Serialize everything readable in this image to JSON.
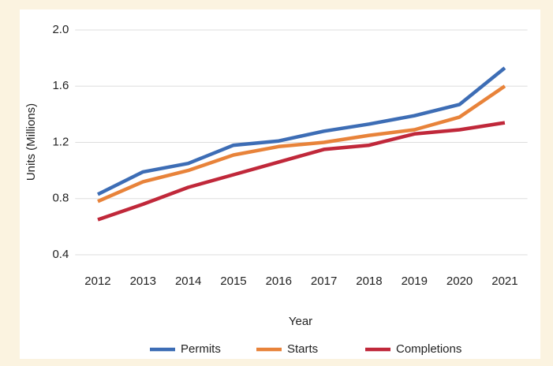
{
  "chart_data": {
    "type": "line",
    "x_label": "Year",
    "y_label": "Units (Millions)",
    "categories": [
      "2012",
      "2013",
      "2014",
      "2015",
      "2016",
      "2017",
      "2018",
      "2019",
      "2020",
      "2021"
    ],
    "series": [
      {
        "name": "Permits",
        "color": "#3d6db5",
        "values": [
          0.83,
          0.99,
          1.05,
          1.18,
          1.21,
          1.28,
          1.33,
          1.39,
          1.47,
          1.73
        ]
      },
      {
        "name": "Starts",
        "color": "#e8833a",
        "values": [
          0.78,
          0.92,
          1.0,
          1.11,
          1.17,
          1.2,
          1.25,
          1.29,
          1.38,
          1.6
        ]
      },
      {
        "name": "Completions",
        "color": "#c0283a",
        "values": [
          0.65,
          0.76,
          0.88,
          0.97,
          1.06,
          1.15,
          1.18,
          1.26,
          1.29,
          1.34
        ]
      }
    ],
    "ylim": [
      0.4,
      2.0
    ],
    "yticks": [
      0.4,
      0.8,
      1.2,
      1.6,
      {
        "value": 2.0,
        "label": "2.0"
      }
    ],
    "grid": true,
    "legend": "bottom"
  }
}
